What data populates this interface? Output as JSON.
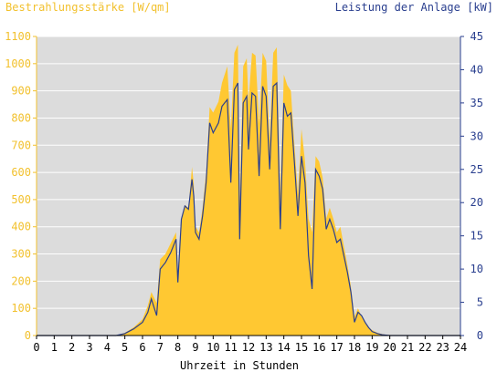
{
  "chart_data": {
    "type": "area",
    "left_axis_title": "Bestrahlungsstärke [W/qm]",
    "right_axis_title": "Leistung der Anlage [kW]",
    "xlabel": "Uhrzeit in Stunden",
    "x_ticks": [
      "0",
      "1",
      "2",
      "3",
      "4",
      "5",
      "6",
      "7",
      "8",
      "9",
      "10",
      "11",
      "12",
      "13",
      "14",
      "15",
      "16",
      "17",
      "18",
      "19",
      "20",
      "21",
      "22",
      "23",
      "24"
    ],
    "y_left_ticks": [
      "0",
      "100",
      "200",
      "300",
      "400",
      "500",
      "600",
      "700",
      "800",
      "900",
      "1000",
      "1100"
    ],
    "y_right_ticks": [
      "0",
      "5",
      "10",
      "15",
      "20",
      "25",
      "30",
      "35",
      "40",
      "45"
    ],
    "ylim_left": [
      0,
      1100
    ],
    "ylim_right": [
      0,
      45
    ],
    "xlim": [
      0,
      24
    ],
    "grid": true,
    "series": [
      {
        "name": "Bestrahlungsstärke [W/qm]",
        "axis": "left",
        "color": "#ffc832",
        "x": [
          0,
          4.5,
          5,
          5.5,
          6,
          6.3,
          6.5,
          6.8,
          7,
          7.3,
          7.6,
          7.9,
          8,
          8.2,
          8.4,
          8.6,
          8.8,
          8.9,
          9,
          9.2,
          9.4,
          9.6,
          9.8,
          10,
          10.3,
          10.5,
          10.8,
          11,
          11.2,
          11.4,
          11.5,
          11.7,
          11.9,
          12,
          12.2,
          12.4,
          12.6,
          12.8,
          13,
          13.2,
          13.4,
          13.6,
          13.8,
          14,
          14.2,
          14.4,
          14.6,
          14.8,
          15,
          15.2,
          15.4,
          15.6,
          15.8,
          16,
          16.2,
          16.4,
          16.6,
          16.8,
          17,
          17.2,
          17.4,
          17.6,
          17.8,
          18,
          18.2,
          18.4,
          18.6,
          18.8,
          19,
          19.3,
          19.6,
          20,
          24
        ],
        "values": [
          0,
          0,
          10,
          30,
          60,
          110,
          160,
          120,
          280,
          300,
          340,
          380,
          230,
          430,
          480,
          470,
          620,
          560,
          400,
          380,
          470,
          600,
          840,
          820,
          860,
          930,
          990,
          760,
          1040,
          1070,
          480,
          990,
          1020,
          860,
          1040,
          1030,
          780,
          1040,
          1010,
          720,
          1040,
          1060,
          520,
          960,
          920,
          900,
          700,
          520,
          760,
          640,
          430,
          380,
          660,
          640,
          580,
          430,
          470,
          430,
          380,
          400,
          330,
          260,
          180,
          70,
          100,
          70,
          50,
          30,
          20,
          10,
          5,
          0,
          0
        ]
      },
      {
        "name": "Leistung der Anlage [kW]",
        "axis": "right",
        "color": "#2a3f8f",
        "x": [
          0,
          4.5,
          5,
          5.5,
          6,
          6.3,
          6.5,
          6.8,
          7,
          7.3,
          7.6,
          7.9,
          8,
          8.2,
          8.4,
          8.6,
          8.8,
          8.9,
          9,
          9.2,
          9.4,
          9.6,
          9.8,
          10,
          10.3,
          10.5,
          10.8,
          11,
          11.2,
          11.4,
          11.5,
          11.7,
          11.9,
          12,
          12.2,
          12.4,
          12.6,
          12.8,
          13,
          13.2,
          13.4,
          13.6,
          13.8,
          14,
          14.2,
          14.4,
          14.6,
          14.8,
          15,
          15.2,
          15.4,
          15.6,
          15.8,
          16,
          16.2,
          16.4,
          16.6,
          16.8,
          17,
          17.2,
          17.4,
          17.6,
          17.8,
          18,
          18.2,
          18.4,
          18.6,
          18.8,
          19,
          19.3,
          19.6,
          20,
          24
        ],
        "values": [
          0,
          0,
          0.3,
          1,
          2,
          3.5,
          5.5,
          3,
          10,
          11,
          12.5,
          14.5,
          8,
          17.5,
          19.5,
          19,
          23.5,
          21,
          15.5,
          14.5,
          18,
          23,
          32,
          30.5,
          32,
          34.5,
          35.5,
          23,
          37,
          38,
          14.5,
          35,
          36,
          28,
          36.5,
          36,
          24,
          37.5,
          36,
          25,
          37.5,
          38,
          16,
          35,
          33,
          33.5,
          26,
          18,
          27,
          23,
          12,
          7,
          25,
          24,
          22,
          16,
          17.5,
          16,
          14,
          14.5,
          12,
          9.5,
          6.5,
          2,
          3.5,
          3,
          2,
          1.2,
          0.6,
          0.3,
          0.1,
          0,
          0
        ]
      }
    ]
  }
}
